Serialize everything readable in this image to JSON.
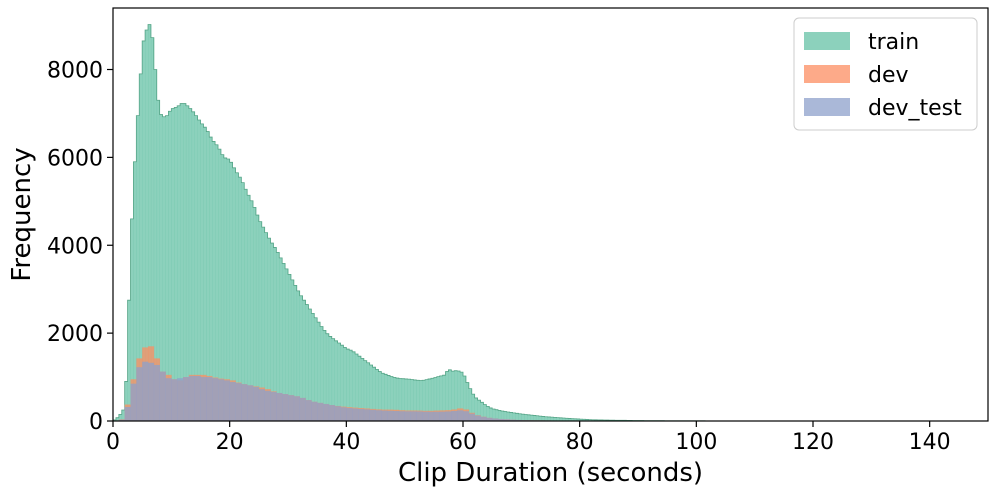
{
  "chart_data": {
    "type": "histogram",
    "xlabel": "Clip Duration (seconds)",
    "ylabel": "Frequency",
    "xlim": [
      0,
      150
    ],
    "ylim": [
      0,
      9400
    ],
    "xticks": [
      0,
      20,
      40,
      60,
      80,
      100,
      120,
      140
    ],
    "yticks": [
      0,
      2000,
      4000,
      6000,
      8000
    ],
    "grid": false,
    "legend_position": "top-right",
    "series": [
      {
        "name": "train",
        "color": "#66c2a5",
        "alpha": 0.75,
        "bin_width": 0.5,
        "outline": true,
        "x": [
          0,
          1,
          2,
          2.5,
          3,
          3.5,
          4,
          4.5,
          5,
          5.5,
          6,
          6.5,
          7,
          7.5,
          8,
          9,
          10,
          11,
          12,
          13,
          14,
          15,
          16,
          17,
          18,
          19,
          20,
          21,
          22,
          23,
          24,
          25,
          26,
          27,
          28,
          29,
          30,
          31,
          32,
          33,
          34,
          35,
          36,
          37,
          38,
          39,
          40,
          41,
          42,
          43,
          44,
          45,
          46,
          47,
          48,
          49,
          50,
          51,
          52,
          53,
          54,
          55,
          56,
          57,
          57.5,
          58,
          59,
          60,
          61,
          62,
          63,
          64,
          65,
          66,
          67,
          68,
          69,
          70,
          72,
          74,
          76,
          78,
          80,
          82,
          85,
          88,
          90,
          95,
          100,
          105,
          110,
          115,
          120,
          130,
          140,
          145,
          150
        ],
        "y": [
          0,
          100,
          300,
          1500,
          4000,
          5200,
          6600,
          7300,
          8500,
          8800,
          9000,
          9050,
          8400,
          7600,
          7000,
          6900,
          7100,
          7150,
          7250,
          7150,
          7000,
          6800,
          6650,
          6400,
          6250,
          6000,
          5950,
          5700,
          5500,
          5200,
          4950,
          4600,
          4350,
          4100,
          3900,
          3650,
          3400,
          3150,
          2900,
          2700,
          2500,
          2300,
          2100,
          1950,
          1850,
          1750,
          1650,
          1600,
          1500,
          1400,
          1300,
          1200,
          1100,
          1050,
          1000,
          970,
          960,
          950,
          930,
          920,
          950,
          980,
          1020,
          1050,
          1200,
          1130,
          1150,
          1100,
          800,
          550,
          450,
          350,
          280,
          250,
          220,
          200,
          180,
          160,
          130,
          100,
          80,
          60,
          45,
          30,
          20,
          15,
          10,
          6,
          4,
          3,
          2,
          1,
          1,
          0,
          0,
          0,
          0
        ]
      },
      {
        "name": "dev",
        "color": "#fc8d62",
        "alpha": 0.75,
        "bin_width": 1,
        "outline": false,
        "x": [
          0,
          2,
          3,
          4,
          5,
          6,
          7,
          8,
          9,
          10,
          11,
          12,
          13,
          14,
          15,
          16,
          17,
          18,
          19,
          20,
          22,
          24,
          26,
          28,
          30,
          32,
          34,
          36,
          38,
          40,
          42,
          44,
          46,
          48,
          50,
          52,
          54,
          56,
          58,
          60,
          62,
          64,
          66,
          70,
          80,
          100,
          150
        ],
        "y": [
          0,
          50,
          700,
          1200,
          1650,
          1700,
          1700,
          1150,
          1100,
          1000,
          900,
          950,
          1050,
          1050,
          1050,
          1050,
          1000,
          980,
          950,
          950,
          850,
          800,
          750,
          650,
          600,
          550,
          450,
          400,
          350,
          320,
          300,
          280,
          260,
          260,
          240,
          240,
          230,
          240,
          250,
          300,
          150,
          80,
          50,
          20,
          5,
          0,
          0
        ]
      },
      {
        "name": "dev_test",
        "color": "#8da0cb",
        "alpha": 0.75,
        "bin_width": 1,
        "outline": false,
        "x": [
          0,
          2,
          3,
          4,
          5,
          6,
          7,
          8,
          9,
          10,
          11,
          12,
          13,
          14,
          15,
          16,
          17,
          18,
          19,
          20,
          22,
          24,
          26,
          28,
          30,
          32,
          34,
          36,
          38,
          40,
          42,
          44,
          46,
          48,
          50,
          52,
          54,
          56,
          58,
          60,
          62,
          64,
          66,
          70,
          80,
          100,
          150
        ],
        "y": [
          0,
          40,
          600,
          1100,
          1350,
          1350,
          1300,
          1250,
          1000,
          950,
          950,
          1000,
          1000,
          1050,
          1000,
          1000,
          1000,
          950,
          950,
          900,
          850,
          800,
          700,
          650,
          600,
          550,
          450,
          400,
          350,
          300,
          280,
          260,
          240,
          230,
          220,
          220,
          210,
          210,
          220,
          250,
          140,
          80,
          50,
          20,
          5,
          0,
          0
        ]
      }
    ]
  }
}
